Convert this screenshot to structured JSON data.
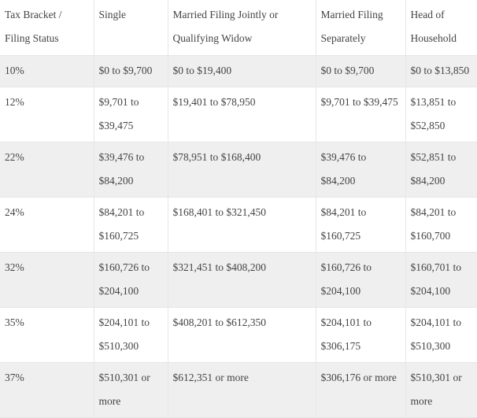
{
  "table": {
    "headers": [
      "Tax Bracket / Filing Status",
      "Single",
      "Married Filing Jointly or Qualifying Widow",
      "Married Filing Separately",
      "Head of Household"
    ],
    "rows": [
      [
        "10%",
        "$0 to $9,700",
        "$0 to $19,400",
        "$0 to $9,700",
        "$0 to $13,850"
      ],
      [
        "12%",
        "$9,701 to $39,475",
        "$19,401 to $78,950",
        "$9,701 to $39,475",
        "$13,851 to $52,850"
      ],
      [
        "22%",
        "$39,476 to $84,200",
        "$78,951 to $168,400",
        "$39,476 to $84,200",
        "$52,851 to $84,200"
      ],
      [
        "24%",
        "$84,201 to $160,725",
        "$168,401 to $321,450",
        "$84,201 to $160,725",
        "$84,201 to $160,700"
      ],
      [
        "32%",
        "$160,726 to $204,100",
        "$321,451 to $408,200",
        "$160,726 to $204,100",
        "$160,701 to $204,100"
      ],
      [
        "35%",
        "$204,101 to $510,300",
        "$408,201 to $612,350",
        "$204,101 to $306,175",
        "$204,101 to $510,300"
      ],
      [
        "37%",
        "$510,301 or more",
        "$612,351 or more",
        "$306,176 or more",
        "$510,301 or more"
      ]
    ]
  }
}
